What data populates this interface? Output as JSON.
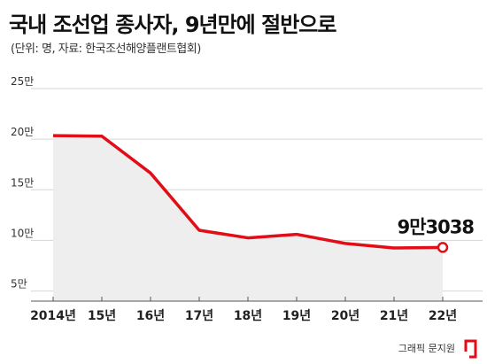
{
  "header": {
    "title": "국내 조선업 종사자, 9년만에 절반으로",
    "subtitle": "(단위: 명, 자료: 한국조선해양플랜트협회)"
  },
  "footer": {
    "credit": "그래픽 문지원",
    "logo_icon": "red-bracket-logo-icon"
  },
  "colors": {
    "line": "#e10d17",
    "area": "#eeeeee",
    "grid": "#d6d6d6",
    "axis": "#555555"
  },
  "chart_data": {
    "type": "area",
    "title": "국내 조선업 종사자, 9년만에 절반으로",
    "subtitle": "(단위: 명, 자료: 한국조선해양플랜트협회)",
    "categories": [
      "2014년",
      "15년",
      "16년",
      "17년",
      "18년",
      "19년",
      "20년",
      "21년",
      "22년"
    ],
    "series": [
      {
        "values": [
          203500,
          203000,
          166500,
          110000,
          102500,
          106000,
          97000,
          92500,
          93038
        ]
      }
    ],
    "y_ticks": [
      {
        "value": 50000,
        "label": "5만"
      },
      {
        "value": 100000,
        "label": "10만"
      },
      {
        "value": 150000,
        "label": "15만"
      },
      {
        "value": 200000,
        "label": "20만"
      },
      {
        "value": 250000,
        "label": "25만"
      }
    ],
    "ylim": [
      40000,
      250000
    ],
    "grid": true,
    "annotation": {
      "index": 8,
      "text": "9만3038"
    }
  }
}
